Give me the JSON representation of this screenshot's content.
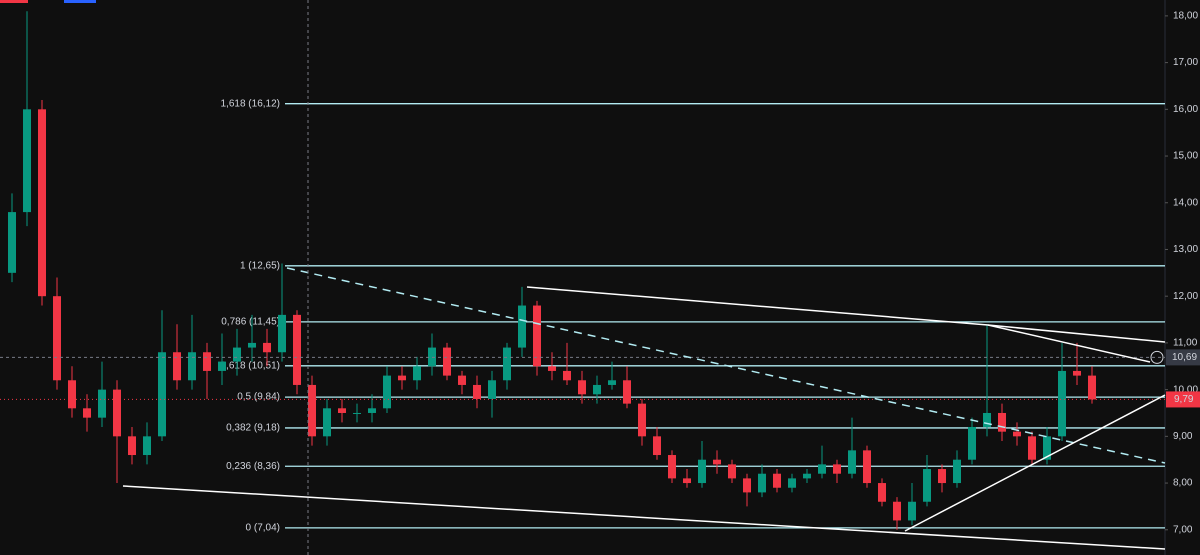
{
  "chart_data": {
    "type": "candlestick",
    "ylim": [
      6.46,
      18.34
    ],
    "yticks": [
      {
        "value": 7,
        "label": "7,00"
      },
      {
        "value": 8,
        "label": "8,00"
      },
      {
        "value": 9,
        "label": "9,00"
      },
      {
        "value": 10,
        "label": "10,00"
      },
      {
        "value": 11,
        "label": "11,00"
      },
      {
        "value": 12,
        "label": "12,00"
      },
      {
        "value": 13,
        "label": "13,00"
      },
      {
        "value": 14,
        "label": "14,00"
      },
      {
        "value": 15,
        "label": "15,00"
      },
      {
        "value": 16,
        "label": "16,00"
      },
      {
        "value": 17,
        "label": "17,00"
      },
      {
        "value": 18,
        "label": "18,00"
      }
    ],
    "up_color": "#089981",
    "down_color": "#f23645",
    "fib_color": "#b2ebf2",
    "fib_levels": [
      {
        "value": 16.12,
        "label": "1,618 (16,12)"
      },
      {
        "value": 12.65,
        "label": "1 (12,65)"
      },
      {
        "value": 11.45,
        "label": "0,786 (11,45)"
      },
      {
        "value": 10.51,
        "label": "0,618 (10,51)"
      },
      {
        "value": 9.84,
        "label": "0,5 (9,84)"
      },
      {
        "value": 9.18,
        "label": "0,382 (9,18)"
      },
      {
        "value": 8.36,
        "label": "0,236 (8,36)"
      },
      {
        "value": 7.04,
        "label": "0 (7,04)"
      }
    ],
    "crosshair_price": {
      "value": 10.69,
      "label": "10,69"
    },
    "last_price": {
      "value": 9.79,
      "label": "9,79"
    },
    "candles": [
      [
        12.5,
        14.2,
        12.3,
        13.8
      ],
      [
        13.8,
        18.1,
        13.5,
        16.0
      ],
      [
        16.0,
        16.2,
        11.8,
        12.0
      ],
      [
        12.0,
        12.4,
        10.0,
        10.2
      ],
      [
        10.2,
        10.5,
        9.4,
        9.6
      ],
      [
        9.6,
        9.9,
        9.1,
        9.4
      ],
      [
        9.4,
        10.6,
        9.2,
        10.0
      ],
      [
        10.0,
        10.2,
        8.0,
        9.0
      ],
      [
        9.0,
        9.2,
        8.4,
        8.6
      ],
      [
        8.6,
        9.3,
        8.4,
        9.0
      ],
      [
        9.0,
        11.7,
        8.9,
        10.8
      ],
      [
        10.8,
        11.4,
        10.0,
        10.2
      ],
      [
        10.2,
        11.6,
        10.0,
        10.8
      ],
      [
        10.8,
        11.0,
        9.8,
        10.4
      ],
      [
        10.4,
        11.2,
        10.1,
        10.6
      ],
      [
        10.6,
        11.3,
        10.3,
        10.9
      ],
      [
        10.9,
        11.6,
        10.6,
        11.0
      ],
      [
        11.0,
        11.3,
        10.5,
        10.8
      ],
      [
        10.8,
        12.7,
        10.6,
        11.6
      ],
      [
        11.6,
        11.7,
        9.9,
        10.1
      ],
      [
        10.1,
        10.3,
        8.8,
        9.0
      ],
      [
        9.0,
        9.8,
        8.8,
        9.6
      ],
      [
        9.6,
        9.8,
        9.3,
        9.5
      ],
      [
        9.5,
        9.7,
        9.3,
        9.5
      ],
      [
        9.5,
        9.9,
        9.3,
        9.6
      ],
      [
        9.6,
        10.5,
        9.5,
        10.3
      ],
      [
        10.3,
        10.5,
        10.0,
        10.2
      ],
      [
        10.2,
        10.7,
        10.0,
        10.5
      ],
      [
        10.5,
        11.2,
        10.3,
        10.9
      ],
      [
        10.9,
        11.0,
        10.2,
        10.3
      ],
      [
        10.3,
        10.4,
        9.9,
        10.1
      ],
      [
        10.1,
        10.3,
        9.6,
        9.8
      ],
      [
        9.8,
        10.4,
        9.4,
        10.2
      ],
      [
        10.2,
        11.0,
        10.0,
        10.9
      ],
      [
        10.9,
        12.2,
        10.7,
        11.8
      ],
      [
        11.8,
        11.9,
        10.3,
        10.5
      ],
      [
        10.5,
        10.8,
        10.2,
        10.4
      ],
      [
        10.4,
        11.0,
        10.1,
        10.2
      ],
      [
        10.2,
        10.4,
        9.7,
        9.9
      ],
      [
        9.9,
        10.3,
        9.7,
        10.1
      ],
      [
        10.1,
        10.6,
        10.0,
        10.2
      ],
      [
        10.2,
        10.5,
        9.6,
        9.7
      ],
      [
        9.7,
        9.8,
        8.8,
        9.0
      ],
      [
        9.0,
        9.2,
        8.5,
        8.6
      ],
      [
        8.6,
        8.7,
        8.0,
        8.1
      ],
      [
        8.1,
        8.3,
        7.9,
        8.0
      ],
      [
        8.0,
        8.9,
        7.9,
        8.5
      ],
      [
        8.5,
        8.7,
        8.2,
        8.4
      ],
      [
        8.4,
        8.5,
        8.0,
        8.1
      ],
      [
        8.1,
        8.2,
        7.5,
        7.8
      ],
      [
        7.8,
        8.4,
        7.7,
        8.2
      ],
      [
        8.2,
        8.3,
        7.8,
        7.9
      ],
      [
        7.9,
        8.2,
        7.8,
        8.1
      ],
      [
        8.1,
        8.3,
        8.0,
        8.2
      ],
      [
        8.2,
        8.8,
        8.1,
        8.4
      ],
      [
        8.4,
        8.5,
        8.0,
        8.2
      ],
      [
        8.2,
        9.4,
        8.1,
        8.7
      ],
      [
        8.7,
        8.8,
        7.9,
        8.0
      ],
      [
        8.0,
        8.1,
        7.5,
        7.6
      ],
      [
        7.6,
        7.7,
        7.0,
        7.2
      ],
      [
        7.2,
        8.0,
        7.1,
        7.6
      ],
      [
        7.6,
        8.6,
        7.5,
        8.3
      ],
      [
        8.3,
        8.4,
        7.8,
        8.0
      ],
      [
        8.0,
        8.7,
        7.9,
        8.5
      ],
      [
        8.5,
        9.4,
        8.4,
        9.2
      ],
      [
        9.2,
        11.4,
        9.0,
        9.5
      ],
      [
        9.5,
        9.7,
        8.9,
        9.1
      ],
      [
        9.1,
        9.3,
        8.8,
        9.0
      ],
      [
        9.0,
        9.1,
        8.4,
        8.5
      ],
      [
        8.5,
        9.2,
        8.4,
        9.0
      ],
      [
        9.0,
        11.0,
        8.9,
        10.4
      ],
      [
        10.4,
        11.0,
        10.1,
        10.3
      ],
      [
        10.3,
        10.5,
        9.7,
        9.79
      ]
    ]
  }
}
